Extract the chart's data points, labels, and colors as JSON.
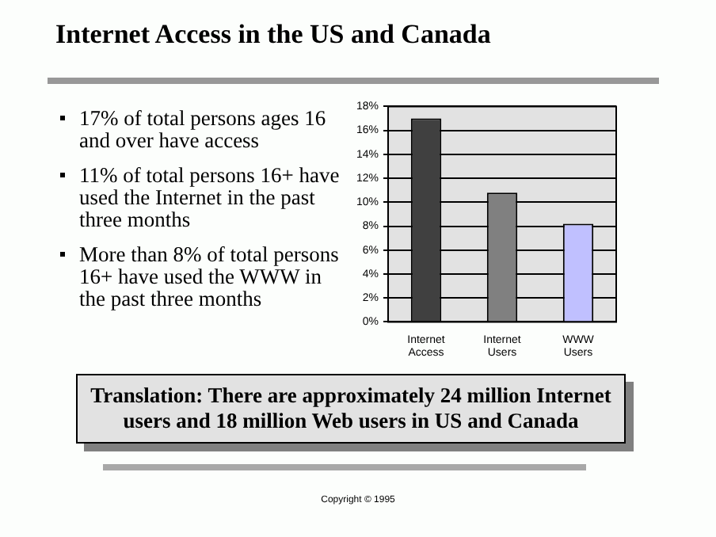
{
  "chart_data": {
    "type": "bar",
    "title": "Internet Access in the US and Canada",
    "categories": [
      "Internet Access",
      "Internet Users",
      "WWW Users"
    ],
    "values": [
      17,
      10.8,
      8.2
    ],
    "colors": [
      "#404040",
      "#808080",
      "#c0c0ff"
    ],
    "ylim": [
      0,
      18
    ],
    "yticks": [
      {
        "value": 0,
        "label": "0%"
      },
      {
        "value": 2,
        "label": "2%"
      },
      {
        "value": 4,
        "label": "4%"
      },
      {
        "value": 6,
        "label": "6%"
      },
      {
        "value": 8,
        "label": "8%"
      },
      {
        "value": 10,
        "label": "10%"
      },
      {
        "value": 12,
        "label": "12%"
      },
      {
        "value": 14,
        "label": "14%"
      },
      {
        "value": 16,
        "label": "16%"
      },
      {
        "value": 18,
        "label": "18%"
      }
    ],
    "grid": "y",
    "annotations": [
      "17% of total persons ages 16 and over have access",
      "11% of total persons 16+ have used the Internet in the past three months",
      "More than 8% of total persons 16+ have used the WWW in the past three months",
      "Translation:  There are approximately 24 million Internet users and 18 million Web users in US and Canada",
      "Copyright © 1995"
    ]
  }
}
